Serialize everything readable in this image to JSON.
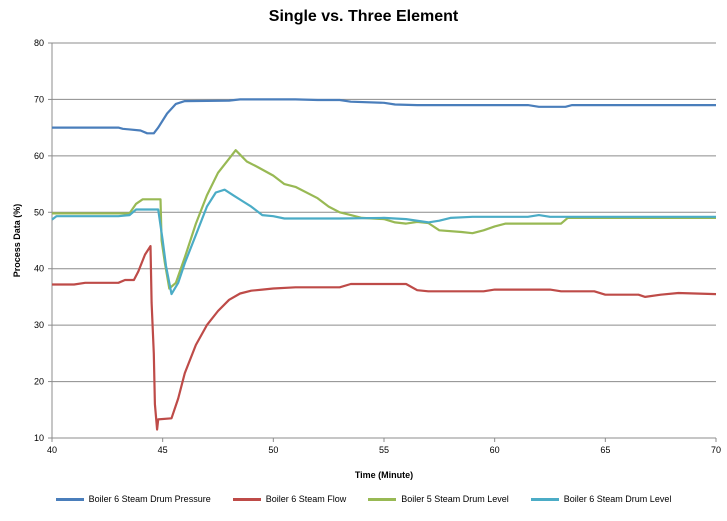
{
  "chart_data": {
    "type": "line",
    "title": "Single vs. Three Element",
    "xlabel": "Time (Minute)",
    "ylabel": "Process Data (%)",
    "xlim": [
      40,
      70
    ],
    "ylim": [
      10,
      80
    ],
    "xticks": [
      40,
      45,
      50,
      55,
      60,
      65,
      70
    ],
    "yticks": [
      10,
      20,
      30,
      40,
      50,
      60,
      70,
      80
    ],
    "grid": "horizontal",
    "legend_position": "bottom",
    "series": [
      {
        "name": "Boiler 6 Steam Drum Pressure",
        "color": "#4a7ebb",
        "points": [
          [
            40,
            65
          ],
          [
            43,
            65
          ],
          [
            43.2,
            64.8
          ],
          [
            44,
            64.5
          ],
          [
            44.3,
            64
          ],
          [
            44.6,
            64
          ],
          [
            44.8,
            65
          ],
          [
            45.2,
            67.5
          ],
          [
            45.6,
            69.2
          ],
          [
            46,
            69.7
          ],
          [
            48,
            69.8
          ],
          [
            48.5,
            70
          ],
          [
            51,
            70
          ],
          [
            52,
            69.9
          ],
          [
            53,
            69.9
          ],
          [
            53.5,
            69.6
          ],
          [
            55,
            69.4
          ],
          [
            55.5,
            69.1
          ],
          [
            56.5,
            69
          ],
          [
            61.5,
            69
          ],
          [
            62,
            68.7
          ],
          [
            63.2,
            68.7
          ],
          [
            63.5,
            69
          ],
          [
            70,
            69
          ]
        ]
      },
      {
        "name": "Boiler 6 Steam Flow",
        "color": "#be4b48",
        "points": [
          [
            40,
            37.2
          ],
          [
            41,
            37.2
          ],
          [
            41.5,
            37.5
          ],
          [
            43,
            37.5
          ],
          [
            43.3,
            38
          ],
          [
            43.7,
            38
          ],
          [
            43.9,
            39.5
          ],
          [
            44.2,
            42.5
          ],
          [
            44.45,
            44
          ],
          [
            44.5,
            34
          ],
          [
            44.6,
            25
          ],
          [
            44.65,
            16
          ],
          [
            44.75,
            11.5
          ],
          [
            44.8,
            13.3
          ],
          [
            45.4,
            13.5
          ],
          [
            45.7,
            17
          ],
          [
            46,
            21.5
          ],
          [
            46.5,
            26.5
          ],
          [
            47,
            30
          ],
          [
            47.5,
            32.5
          ],
          [
            48,
            34.5
          ],
          [
            48.5,
            35.6
          ],
          [
            49,
            36.1
          ],
          [
            49.5,
            36.3
          ],
          [
            50,
            36.5
          ],
          [
            51,
            36.7
          ],
          [
            53,
            36.7
          ],
          [
            53.5,
            37.3
          ],
          [
            56,
            37.3
          ],
          [
            56.5,
            36.2
          ],
          [
            57,
            36
          ],
          [
            59.5,
            36
          ],
          [
            60,
            36.3
          ],
          [
            62.5,
            36.3
          ],
          [
            63,
            36
          ],
          [
            64.5,
            36
          ],
          [
            65,
            35.4
          ],
          [
            66.5,
            35.4
          ],
          [
            66.8,
            35
          ],
          [
            67.5,
            35.4
          ],
          [
            68.3,
            35.7
          ],
          [
            70,
            35.5
          ]
        ]
      },
      {
        "name": "Boiler 5 Steam Drum Level",
        "color": "#98b954",
        "points": [
          [
            40,
            49.8
          ],
          [
            43.5,
            49.8
          ],
          [
            43.8,
            51.5
          ],
          [
            44.1,
            52.3
          ],
          [
            44.9,
            52.3
          ],
          [
            44.95,
            45
          ],
          [
            45.1,
            41
          ],
          [
            45.3,
            36.5
          ],
          [
            45.6,
            37.5
          ],
          [
            46,
            42
          ],
          [
            46.5,
            48
          ],
          [
            47,
            53
          ],
          [
            47.5,
            57
          ],
          [
            48,
            59.5
          ],
          [
            48.3,
            61
          ],
          [
            48.8,
            59
          ],
          [
            49.3,
            58
          ],
          [
            50,
            56.5
          ],
          [
            50.5,
            55
          ],
          [
            51,
            54.5
          ],
          [
            52,
            52.5
          ],
          [
            52.5,
            51
          ],
          [
            53,
            50
          ],
          [
            53.5,
            49.5
          ],
          [
            54,
            49
          ],
          [
            55,
            48.8
          ],
          [
            55.5,
            48.2
          ],
          [
            56,
            48
          ],
          [
            56.5,
            48.3
          ],
          [
            57,
            48.1
          ],
          [
            57.5,
            46.8
          ],
          [
            58.5,
            46.5
          ],
          [
            59,
            46.3
          ],
          [
            59.5,
            46.8
          ],
          [
            60,
            47.5
          ],
          [
            60.5,
            48
          ],
          [
            63,
            48
          ],
          [
            63.3,
            49
          ],
          [
            70,
            49
          ]
        ]
      },
      {
        "name": "Boiler 6 Steam Drum Level",
        "color": "#4bacc6",
        "points": [
          [
            40,
            48.7
          ],
          [
            40.2,
            49.3
          ],
          [
            43,
            49.3
          ],
          [
            43.5,
            49.5
          ],
          [
            43.8,
            50.5
          ],
          [
            44.8,
            50.5
          ],
          [
            45,
            45
          ],
          [
            45.15,
            40.5
          ],
          [
            45.4,
            35.5
          ],
          [
            45.7,
            37.5
          ],
          [
            46,
            41
          ],
          [
            46.5,
            46
          ],
          [
            47,
            51
          ],
          [
            47.4,
            53.5
          ],
          [
            47.8,
            54
          ],
          [
            48.2,
            53
          ],
          [
            48.6,
            52
          ],
          [
            49,
            51
          ],
          [
            49.5,
            49.5
          ],
          [
            50,
            49.3
          ],
          [
            50.5,
            48.9
          ],
          [
            53,
            48.9
          ],
          [
            55,
            49
          ],
          [
            56,
            48.8
          ],
          [
            57,
            48.2
          ],
          [
            57.5,
            48.5
          ],
          [
            58,
            49
          ],
          [
            59,
            49.2
          ],
          [
            61.5,
            49.2
          ],
          [
            62,
            49.5
          ],
          [
            62.5,
            49.2
          ],
          [
            70,
            49.2
          ]
        ]
      }
    ]
  }
}
